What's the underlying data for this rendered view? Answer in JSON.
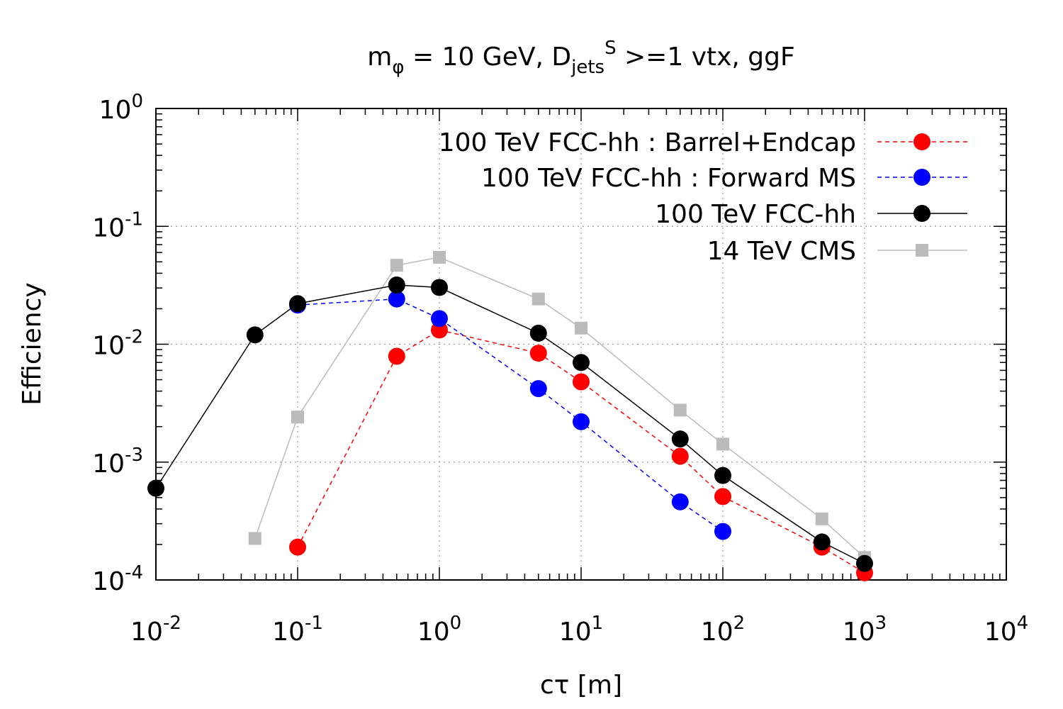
{
  "chart_data": {
    "type": "line",
    "title": {
      "main": "m",
      "main_sub": "φ",
      "mid": " = 10 GeV, D",
      "mid_sub": "jets",
      "sup": "S",
      "tail": " >=1 vtx, ggF"
    },
    "xlabel": "cτ [m]",
    "ylabel": "Efficiency",
    "xscale": "log",
    "yscale": "log",
    "xlim": [
      0.01,
      10000
    ],
    "ylim": [
      0.0001,
      1
    ],
    "grid": true,
    "legend_position": "top-right",
    "x_ticks": [
      {
        "value": 0.01,
        "base": "10",
        "exp": "-2"
      },
      {
        "value": 0.1,
        "base": "10",
        "exp": "-1"
      },
      {
        "value": 1,
        "base": "10",
        "exp": "0"
      },
      {
        "value": 10,
        "base": "10",
        "exp": "1"
      },
      {
        "value": 100,
        "base": "10",
        "exp": "2"
      },
      {
        "value": 1000,
        "base": "10",
        "exp": "3"
      },
      {
        "value": 10000,
        "base": "10",
        "exp": "4"
      }
    ],
    "y_ticks": [
      {
        "value": 0.0001,
        "base": "10",
        "exp": "-4"
      },
      {
        "value": 0.001,
        "base": "10",
        "exp": "-3"
      },
      {
        "value": 0.01,
        "base": "10",
        "exp": "-2"
      },
      {
        "value": 0.1,
        "base": "10",
        "exp": "-1"
      },
      {
        "value": 1,
        "base": "10",
        "exp": "0"
      }
    ],
    "series": [
      {
        "name": "100 TeV FCC-hh : Barrel+Endcap",
        "color": "#ff0000",
        "line": "dashed",
        "marker": "circle",
        "x": [
          0.1,
          0.5,
          1,
          5,
          10,
          50,
          100,
          500,
          1000
        ],
        "y": [
          0.00019,
          0.0079,
          0.0132,
          0.0084,
          0.0048,
          0.00112,
          0.00051,
          0.00019,
          0.000115
        ]
      },
      {
        "name": "100 TeV FCC-hh : Forward MS",
        "color": "#0000ff",
        "line": "dashed",
        "marker": "circle",
        "x": [
          0.1,
          0.5,
          1,
          5,
          10,
          50,
          100
        ],
        "y": [
          0.0215,
          0.0242,
          0.0165,
          0.0042,
          0.0022,
          0.00046,
          0.000258
        ]
      },
      {
        "name": "100 TeV FCC-hh",
        "color": "#000000",
        "line": "solid",
        "marker": "circle",
        "x": [
          0.01,
          0.05,
          0.1,
          0.5,
          1,
          5,
          10,
          50,
          100,
          500,
          1000
        ],
        "y": [
          0.0006,
          0.012,
          0.0221,
          0.0318,
          0.0303,
          0.0124,
          0.007,
          0.00157,
          0.00077,
          0.00021,
          0.000138
        ]
      },
      {
        "name": "14 TeV CMS",
        "color": "#bbbbbb",
        "line": "solid",
        "marker": "square",
        "x": [
          0.05,
          0.1,
          0.5,
          1,
          5,
          10,
          50,
          100,
          500,
          1000
        ],
        "y": [
          0.000225,
          0.00241,
          0.0467,
          0.0546,
          0.0242,
          0.0137,
          0.00276,
          0.00142,
          0.00033,
          0.000155
        ]
      }
    ]
  }
}
